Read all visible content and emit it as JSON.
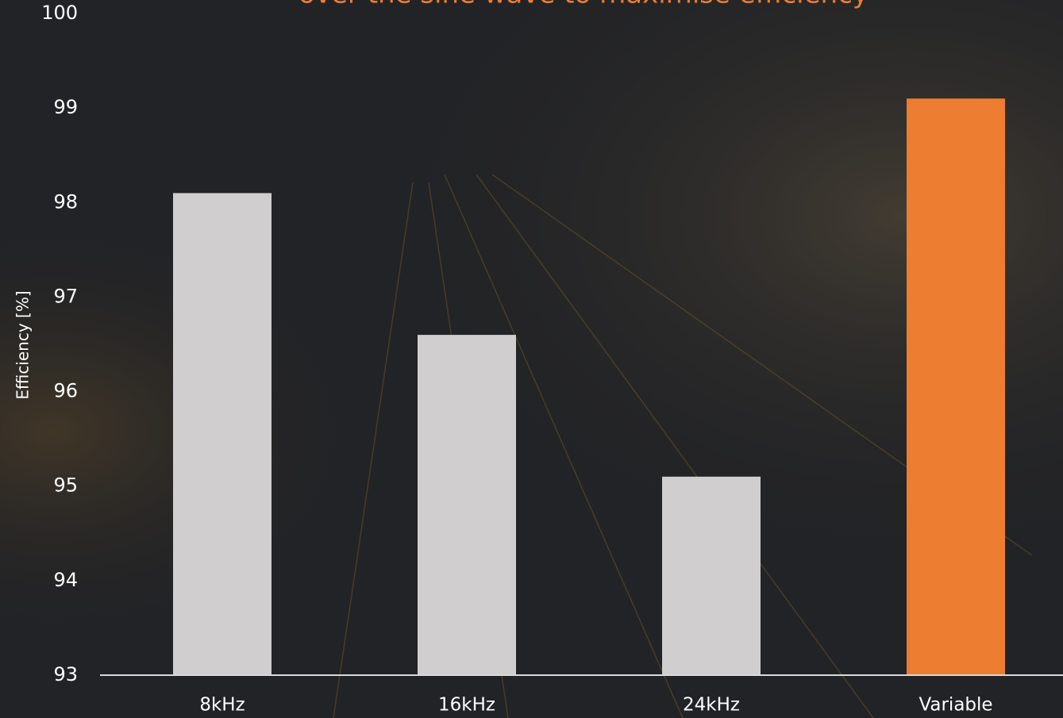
{
  "chart_data": {
    "type": "bar",
    "title": "over the sine wave to maximise efficiency",
    "y_label": "Efficiency [%]",
    "categories": [
      "8kHz",
      "16kHz",
      "24kHz",
      "Variable"
    ],
    "values": [
      98.1,
      96.6,
      95.1,
      99.1
    ],
    "colors": [
      "#d0cecf",
      "#d0cecf",
      "#d0cecf",
      "#ed7d31"
    ],
    "ylim": [
      93,
      100
    ],
    "yticks": [
      93,
      94,
      95,
      96,
      97,
      98,
      99,
      100
    ],
    "grid": false
  }
}
